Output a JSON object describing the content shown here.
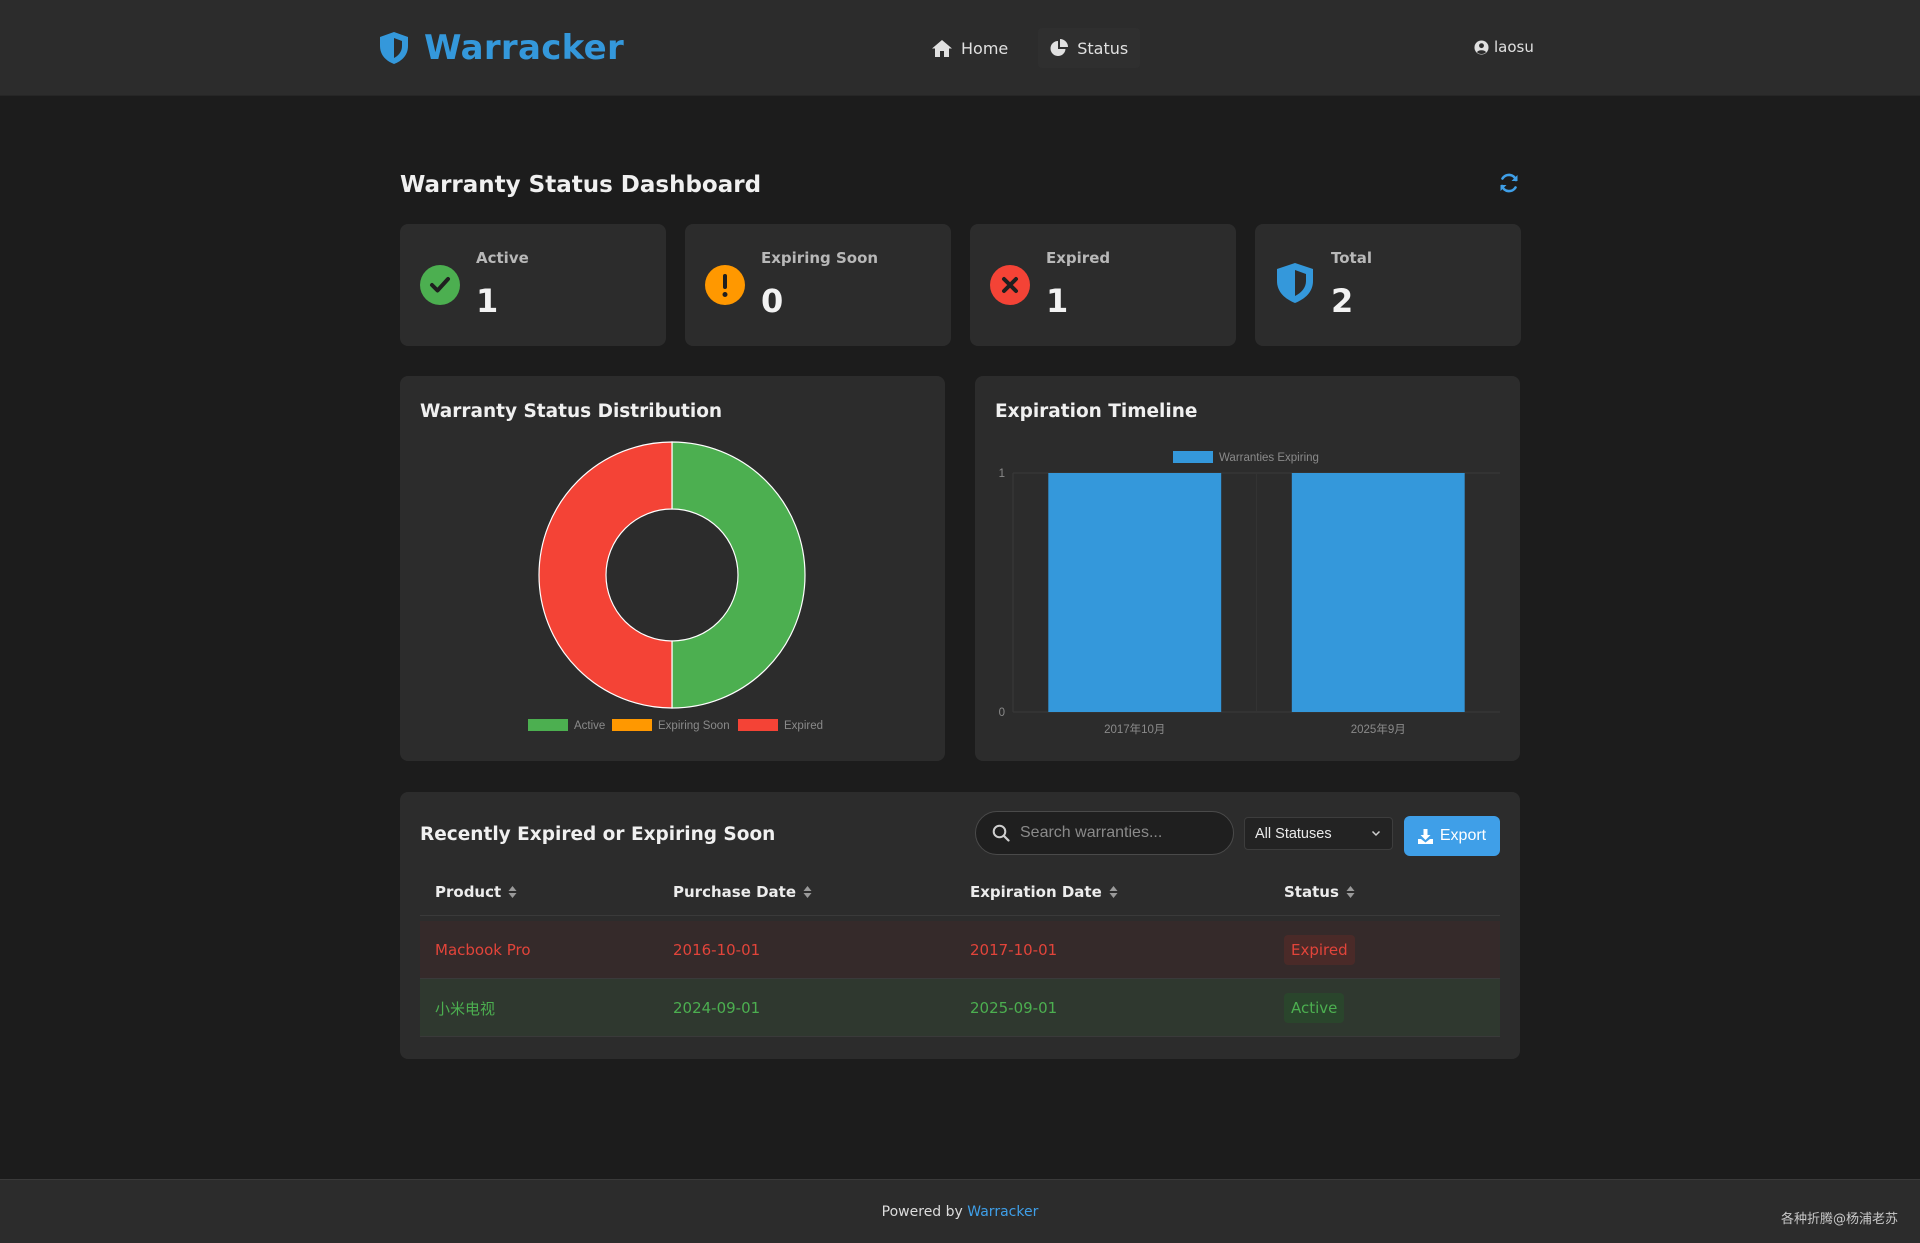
{
  "colors": {
    "accent": "#3498db",
    "active": "#4caf50",
    "expiring": "#ff9800",
    "expired": "#f44336"
  },
  "header": {
    "brand": "Warracker",
    "nav": [
      {
        "label": "Home",
        "icon": "home-icon"
      },
      {
        "label": "Status",
        "icon": "pie-chart-icon"
      }
    ],
    "user": "laosu"
  },
  "dashboard": {
    "title": "Warranty Status Dashboard",
    "cards": [
      {
        "label": "Active",
        "value": "1",
        "icon": "check-circle-icon"
      },
      {
        "label": "Expiring Soon",
        "value": "0",
        "icon": "exclamation-circle-icon"
      },
      {
        "label": "Expired",
        "value": "1",
        "icon": "x-circle-icon"
      },
      {
        "label": "Total",
        "value": "2",
        "icon": "shield-icon"
      }
    ]
  },
  "chart_data": [
    {
      "type": "pie",
      "title": "Warranty Status Distribution",
      "labels": [
        "Active",
        "Expiring Soon",
        "Expired"
      ],
      "values": [
        1,
        0,
        1
      ],
      "colors": [
        "#4caf50",
        "#ff9800",
        "#f44336"
      ],
      "legend": "bottom"
    },
    {
      "type": "bar",
      "title": "Expiration Timeline",
      "categories": [
        "2017年10月",
        "2025年9月"
      ],
      "series": [
        {
          "name": "Warranties Expiring",
          "values": [
            1,
            1
          ],
          "color": "#3498db"
        }
      ],
      "ylim": [
        0,
        1
      ],
      "yticks": [
        "0",
        "1"
      ],
      "legend": "top",
      "grid": true
    }
  ],
  "table": {
    "title": "Recently Expired or Expiring Soon",
    "search_placeholder": "Search warranties...",
    "filter_selected": "All Statuses",
    "export_label": "Export",
    "columns": [
      "Product",
      "Purchase Date",
      "Expiration Date",
      "Status"
    ],
    "rows": [
      {
        "product": "Macbook Pro",
        "purchase": "2016-10-01",
        "expiration": "2017-10-01",
        "status": "Expired"
      },
      {
        "product": "小米电视",
        "purchase": "2024-09-01",
        "expiration": "2025-09-01",
        "status": "Active"
      }
    ]
  },
  "footer": {
    "prefix": "Powered by",
    "link": "Warracker",
    "watermark": "各种折腾@杨浦老苏"
  }
}
